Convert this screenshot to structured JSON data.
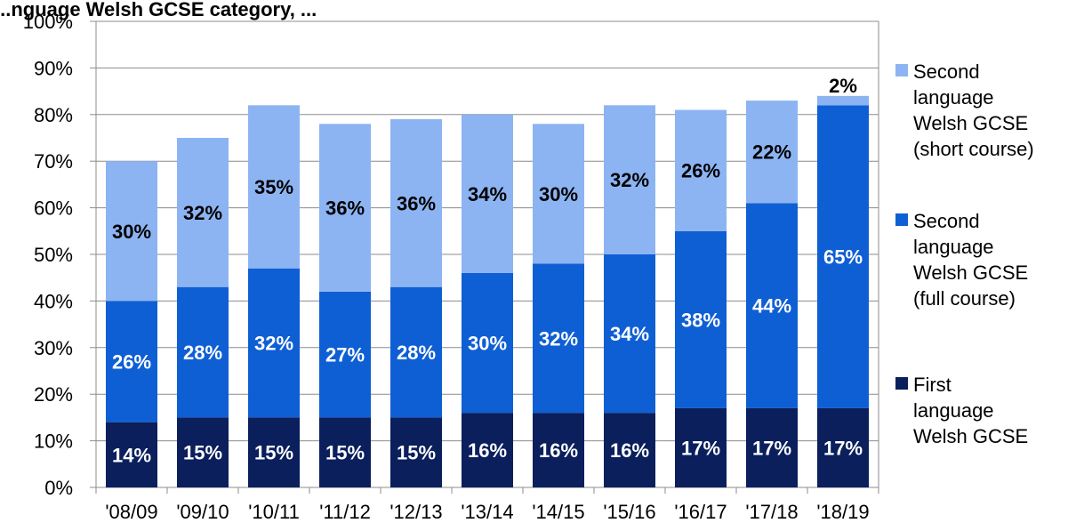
{
  "chart_data": {
    "type": "bar",
    "stacked": true,
    "title": "...nguage Welsh GCSE category, ...",
    "categories": [
      "'08/09",
      "'09/10",
      "'10/11",
      "'11/12",
      "'12/13",
      "'13/14",
      "'14/15",
      "'15/16",
      "'16/17",
      "'17/18",
      "'18/19"
    ],
    "series": [
      {
        "name": "First language Welsh GCSE",
        "legend_lines": [
          "First",
          "language",
          "Welsh GCSE"
        ],
        "color": "#0a1f5c",
        "label_color": "#ffffff",
        "values": [
          14,
          15,
          15,
          15,
          15,
          16,
          16,
          16,
          17,
          17,
          17
        ],
        "labels": [
          "14%",
          "15%",
          "15%",
          "15%",
          "15%",
          "16%",
          "16%",
          "16%",
          "17%",
          "17%",
          "17%"
        ]
      },
      {
        "name": "Second language Welsh GCSE (full course)",
        "legend_lines": [
          "Second",
          "language",
          "Welsh GCSE",
          "(full course)"
        ],
        "color": "#0f5fd4",
        "label_color": "#ffffff",
        "values": [
          26,
          28,
          32,
          27,
          28,
          30,
          32,
          34,
          38,
          44,
          65
        ],
        "labels": [
          "26%",
          "28%",
          "32%",
          "27%",
          "28%",
          "30%",
          "32%",
          "34%",
          "38%",
          "44%",
          "65%"
        ]
      },
      {
        "name": "Second language Welsh GCSE (short course)",
        "legend_lines": [
          "Second",
          "language",
          "Welsh GCSE",
          "(short course)"
        ],
        "color": "#8db4f2",
        "label_color": "#000000",
        "values": [
          30,
          32,
          35,
          36,
          36,
          34,
          30,
          32,
          26,
          22,
          2
        ],
        "labels": [
          "30%",
          "32%",
          "35%",
          "36%",
          "36%",
          "34%",
          "30%",
          "32%",
          "26%",
          "22%",
          "2%"
        ]
      }
    ],
    "ylim": [
      0,
      100
    ],
    "yticks": [
      "0%",
      "10%",
      "20%",
      "30%",
      "40%",
      "50%",
      "60%",
      "70%",
      "80%",
      "90%",
      "100%"
    ],
    "grid": true,
    "legend_position": "right"
  }
}
